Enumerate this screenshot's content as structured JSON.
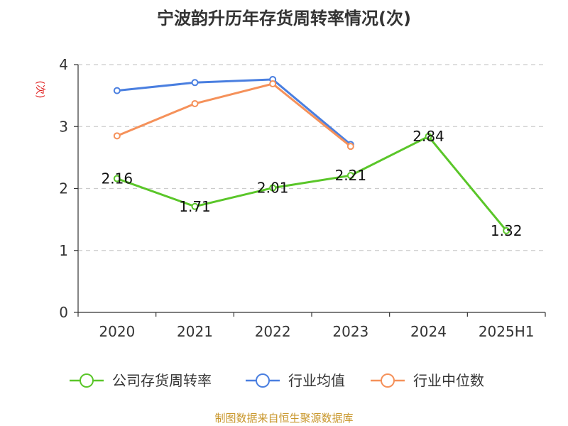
{
  "chart_data": {
    "type": "line",
    "title": "宁波韵升历年存货周转率情况(次)",
    "ylabel": "(次)",
    "xlabel": "",
    "categories": [
      "2020",
      "2021",
      "2022",
      "2023",
      "2024",
      "2025H1"
    ],
    "ylim": [
      0,
      4
    ],
    "yticks": [
      "0",
      "1",
      "2",
      "3",
      "4"
    ],
    "grid": true,
    "legend_position": "bottom",
    "series": [
      {
        "name": "公司存货周转率",
        "color": "#5ac629",
        "values": [
          2.16,
          1.71,
          2.01,
          2.21,
          2.84,
          1.32
        ],
        "labels": [
          "2.16",
          "1.71",
          "2.01",
          "2.21",
          "2.84",
          "1.32"
        ]
      },
      {
        "name": "行业均值",
        "color": "#4a7fe0",
        "values": [
          3.58,
          3.71,
          3.76,
          2.71,
          null,
          null
        ]
      },
      {
        "name": "行业中位数",
        "color": "#f5915a",
        "values": [
          2.85,
          3.37,
          3.69,
          2.68,
          null,
          null
        ]
      }
    ]
  },
  "source": "制图数据来自恒生聚源数据库"
}
